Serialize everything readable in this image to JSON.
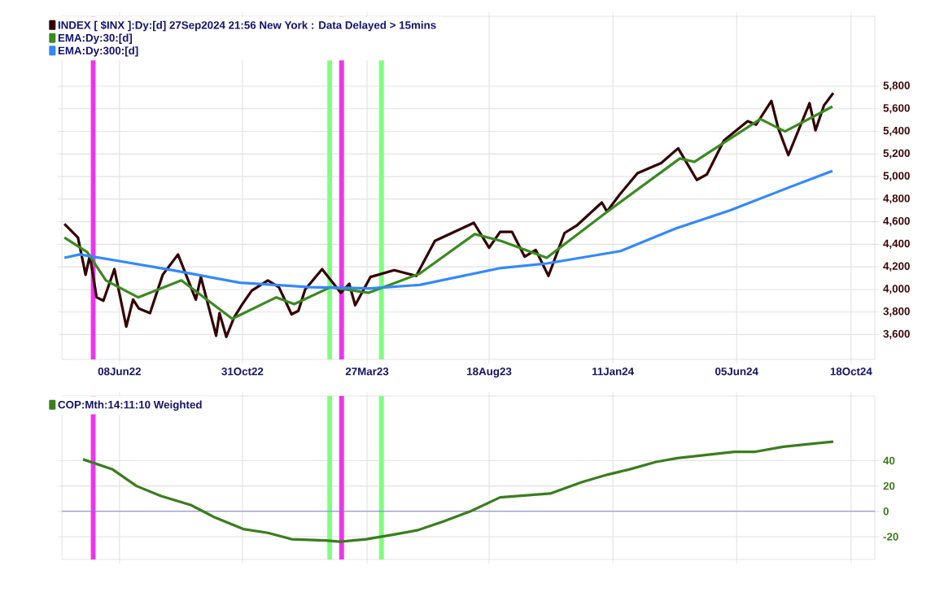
{
  "chart_data": [
    {
      "type": "line",
      "xlim": [
        "2022-04-01",
        "2024-11-15"
      ],
      "ylim": [
        3380,
        6420
      ],
      "xticks": [
        {
          "value": "2022-06-08",
          "label": "08Jun22"
        },
        {
          "value": "2022-10-31",
          "label": "31Oct22"
        },
        {
          "value": "2023-03-27",
          "label": "27Mar23"
        },
        {
          "value": "2023-08-18",
          "label": "18Aug23"
        },
        {
          "value": "2024-01-11",
          "label": "11Jan24"
        },
        {
          "value": "2024-06-05",
          "label": "05Jun24"
        },
        {
          "value": "2024-10-18",
          "label": "18Oct24"
        }
      ],
      "yticks": [
        {
          "value": 3600,
          "label": "3,600"
        },
        {
          "value": 3800,
          "label": "3,800"
        },
        {
          "value": 4000,
          "label": "4,000"
        },
        {
          "value": 4200,
          "label": "4,200"
        },
        {
          "value": 4400,
          "label": "4,400"
        },
        {
          "value": 4600,
          "label": "4,600"
        },
        {
          "value": 4800,
          "label": "4,800"
        },
        {
          "value": 5000,
          "label": "5,000"
        },
        {
          "value": 5200,
          "label": "5,200"
        },
        {
          "value": 5400,
          "label": "5,400"
        },
        {
          "value": 5600,
          "label": "5,600"
        },
        {
          "value": 5800,
          "label": "5,800"
        }
      ],
      "grid": true,
      "legend": "top left",
      "marker": "none",
      "ref_lines": [
        {
          "axis": "x",
          "value": "2022-05-08",
          "color": "#ee33ee"
        },
        {
          "axis": "x",
          "value": "2023-02-11",
          "color": "#7fff7f"
        },
        {
          "axis": "x",
          "value": "2023-02-25",
          "color": "#ee33ee"
        },
        {
          "axis": "x",
          "value": "2023-04-13",
          "color": "#7fff7f"
        }
      ],
      "series": [
        {
          "name": "INDEX [ $INX ]:Dy:[d]  27Sep2024 21:56 New York : Data Delayed > 15mins",
          "color": "#330000",
          "x": [
            "2022-04-04",
            "2022-04-20",
            "2022-04-29",
            "2022-05-04",
            "2022-05-12",
            "2022-05-20",
            "2022-06-02",
            "2022-06-16",
            "2022-06-24",
            "2022-07-01",
            "2022-07-14",
            "2022-07-29",
            "2022-08-16",
            "2022-09-06",
            "2022-09-12",
            "2022-09-30",
            "2022-10-04",
            "2022-10-12",
            "2022-10-21",
            "2022-10-31",
            "2022-11-11",
            "2022-11-30",
            "2022-12-13",
            "2022-12-28",
            "2023-01-05",
            "2023-01-13",
            "2023-02-02",
            "2023-02-24",
            "2023-03-06",
            "2023-03-13",
            "2023-03-31",
            "2023-04-28",
            "2023-05-24",
            "2023-06-15",
            "2023-07-31",
            "2023-08-18",
            "2023-08-31",
            "2023-09-14",
            "2023-09-29",
            "2023-10-12",
            "2023-10-27",
            "2023-11-15",
            "2023-11-30",
            "2023-12-29",
            "2024-01-04",
            "2024-01-19",
            "2024-02-09",
            "2024-03-08",
            "2024-03-28",
            "2024-04-19",
            "2024-05-01",
            "2024-05-21",
            "2024-06-18",
            "2024-06-28",
            "2024-07-16",
            "2024-07-24",
            "2024-08-05",
            "2024-08-30",
            "2024-09-06",
            "2024-09-16",
            "2024-09-27"
          ],
          "values": [
            4580,
            4460,
            4130,
            4300,
            3930,
            3900,
            4180,
            3670,
            3910,
            3830,
            3790,
            4130,
            4310,
            3910,
            4110,
            3590,
            3790,
            3580,
            3750,
            3870,
            3990,
            4080,
            4020,
            3780,
            3810,
            4000,
            4180,
            3970,
            4050,
            3860,
            4110,
            4170,
            4120,
            4430,
            4590,
            4370,
            4510,
            4510,
            4290,
            4350,
            4120,
            4500,
            4570,
            4770,
            4690,
            4840,
            5030,
            5120,
            5250,
            4970,
            5020,
            5320,
            5490,
            5460,
            5670,
            5430,
            5190,
            5650,
            5410,
            5630,
            5740
          ]
        },
        {
          "name": "EMA:Dy:30:[d]",
          "color": "#3a8a22",
          "x": [
            "2022-04-04",
            "2022-05-01",
            "2022-05-23",
            "2022-06-30",
            "2022-08-20",
            "2022-10-19",
            "2022-12-10",
            "2022-12-31",
            "2023-02-12",
            "2023-03-29",
            "2023-05-28",
            "2023-08-01",
            "2023-09-01",
            "2023-10-25",
            "2024-01-01",
            "2024-03-30",
            "2024-04-16",
            "2024-07-03",
            "2024-08-01",
            "2024-09-26"
          ],
          "values": [
            4460,
            4330,
            4080,
            3930,
            4080,
            3740,
            3930,
            3870,
            4020,
            3970,
            4140,
            4490,
            4430,
            4280,
            4670,
            5160,
            5130,
            5510,
            5400,
            5620
          ]
        },
        {
          "name": "EMA:Dy:300:[d]",
          "color": "#3388ff",
          "x": [
            "2022-04-04",
            "2022-04-22",
            "2022-06-09",
            "2022-08-10",
            "2022-10-28",
            "2023-01-19",
            "2023-03-31",
            "2023-05-28",
            "2023-09-01",
            "2023-10-25",
            "2024-01-20",
            "2024-03-25",
            "2024-05-28",
            "2024-08-01",
            "2024-09-26"
          ],
          "values": [
            4280,
            4310,
            4250,
            4170,
            4060,
            4020,
            4010,
            4040,
            4190,
            4230,
            4340,
            4540,
            4700,
            4890,
            5050
          ]
        }
      ]
    },
    {
      "type": "line",
      "xlim": [
        "2022-04-01",
        "2024-11-15"
      ],
      "ylim": [
        -38,
        91
      ],
      "xticks": [
        {
          "value": "2022-06-08",
          "label": null
        },
        {
          "value": "2022-10-31",
          "label": null
        },
        {
          "value": "2023-03-27",
          "label": null
        },
        {
          "value": "2023-08-18",
          "label": null
        },
        {
          "value": "2024-01-11",
          "label": null
        },
        {
          "value": "2024-06-05",
          "label": null
        },
        {
          "value": "2024-10-18",
          "label": null
        }
      ],
      "yticks": [
        -20,
        0,
        20,
        40
      ],
      "tick_labels": "y",
      "grid": true,
      "legend": "top left",
      "marker": "none",
      "ref_lines": [
        {
          "axis": "x",
          "value": "2022-05-08",
          "color": "#ee33ee"
        },
        {
          "axis": "x",
          "value": "2023-02-11",
          "color": "#7fff7f"
        },
        {
          "axis": "x",
          "value": "2023-02-25",
          "color": "#ee33ee"
        },
        {
          "axis": "x",
          "value": "2023-04-13",
          "color": "#7fff7f"
        },
        {
          "axis": "y",
          "value": 0,
          "color": "#8080cc"
        }
      ],
      "series": [
        {
          "name": "COP:Mth:14:11:10 Weighted",
          "color": "#3a7d1e",
          "x": [
            "2022-04-26",
            "2022-05-31",
            "2022-06-28",
            "2022-07-27",
            "2022-08-31",
            "2022-09-29",
            "2022-11-01",
            "2022-11-30",
            "2022-12-28",
            "2023-02-06",
            "2023-02-23",
            "2023-03-26",
            "2023-04-30",
            "2023-05-25",
            "2023-06-25",
            "2023-07-27",
            "2023-08-31",
            "2023-10-29",
            "2023-12-05",
            "2024-01-05",
            "2024-01-30",
            "2024-03-02",
            "2024-03-27",
            "2024-06-02",
            "2024-06-27",
            "2024-07-30",
            "2024-09-27"
          ],
          "values": [
            41,
            33,
            20,
            12,
            5,
            -5,
            -14,
            -17,
            -22,
            -23,
            -24,
            -22,
            -18,
            -15,
            -8,
            0,
            11,
            14,
            23,
            29,
            33,
            39,
            42,
            47,
            47,
            51,
            55
          ]
        }
      ]
    }
  ]
}
